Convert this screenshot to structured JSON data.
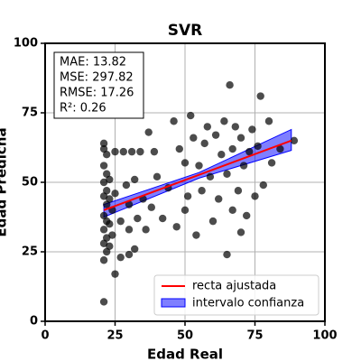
{
  "chart_data": {
    "type": "scatter",
    "title": "SVR",
    "xlabel": "Edad Real",
    "ylabel": "Edad Predicha",
    "annotations": [
      "MAE: 13.82",
      "MSE: 297.82",
      "RMSE: 17.26",
      "R²: 0.26"
    ],
    "xlim": [
      0,
      100
    ],
    "ylim": [
      0,
      100
    ],
    "xticks": [
      0,
      25,
      50,
      75,
      100
    ],
    "yticks": [
      0,
      25,
      50,
      75,
      100
    ],
    "grid": true,
    "legend": "lower right",
    "point_color": "#000000",
    "x": [
      21,
      21,
      21,
      21,
      21,
      21,
      21,
      21,
      21,
      21,
      22,
      22,
      22,
      22,
      22,
      22,
      22,
      23,
      23,
      23,
      23,
      24,
      24,
      25,
      25,
      25,
      27,
      27,
      28,
      29,
      30,
      30,
      30,
      31,
      32,
      32,
      33,
      34,
      35,
      36,
      37,
      38,
      39,
      40,
      42,
      44,
      46,
      47,
      48,
      50,
      50,
      51,
      52,
      53,
      54,
      55,
      56,
      57,
      58,
      59,
      60,
      61,
      62,
      63,
      64,
      65,
      65,
      66,
      67,
      67,
      68,
      69,
      70,
      70,
      71,
      72,
      73,
      74,
      75,
      76,
      77,
      78,
      80,
      81,
      84,
      89
    ],
    "values": [
      7,
      22,
      28,
      33,
      38,
      45,
      50,
      56,
      62,
      64,
      25,
      30,
      36,
      42,
      47,
      53,
      60,
      27,
      35,
      44,
      51,
      31,
      40,
      17,
      46,
      61,
      23,
      36,
      61,
      49,
      24,
      33,
      42,
      61,
      26,
      51,
      37,
      61,
      44,
      33,
      68,
      41,
      61,
      52,
      37,
      48,
      72,
      34,
      62,
      40,
      57,
      45,
      74,
      66,
      31,
      56,
      47,
      64,
      70,
      52,
      36,
      67,
      44,
      60,
      72,
      24,
      53,
      85,
      40,
      62,
      70,
      47,
      66,
      32,
      56,
      38,
      61,
      69,
      45,
      63,
      81,
      49,
      72,
      57,
      62,
      65
    ],
    "fit": {
      "name": "recta ajustada",
      "color": "#ff0000",
      "x": [
        21,
        88
      ],
      "values": [
        40,
        65
      ]
    },
    "band": {
      "name": "intervalo confianza",
      "color": "#0000ff",
      "x": [
        21,
        55,
        88
      ],
      "lower": [
        37.5,
        51.5,
        61.5
      ],
      "upper": [
        42,
        53.5,
        69
      ]
    }
  }
}
